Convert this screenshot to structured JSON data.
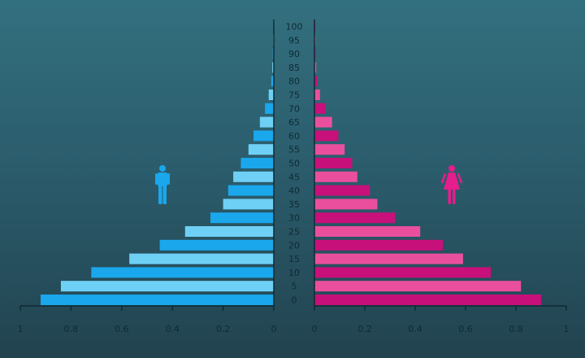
{
  "chart_data": {
    "type": "bar",
    "orientation": "horizontal-pyramid",
    "categories": [
      "0",
      "5",
      "10",
      "15",
      "20",
      "25",
      "30",
      "35",
      "40",
      "45",
      "50",
      "55",
      "60",
      "65",
      "70",
      "75",
      "80",
      "85",
      "90",
      "95",
      "100"
    ],
    "series": [
      {
        "values": [
          0.92,
          0.84,
          0.72,
          0.57,
          0.45,
          0.35,
          0.25,
          0.2,
          0.18,
          0.16,
          0.13,
          0.1,
          0.08,
          0.055,
          0.035,
          0.02,
          0.01,
          0.006,
          0.004,
          0.003,
          0.002
        ]
      },
      {
        "values": [
          0.9,
          0.82,
          0.7,
          0.59,
          0.51,
          0.42,
          0.32,
          0.25,
          0.22,
          0.17,
          0.15,
          0.12,
          0.095,
          0.07,
          0.045,
          0.022,
          0.012,
          0.007,
          0.005,
          0.004,
          0.003
        ]
      }
    ],
    "left_axis": {
      "xlim": [
        0,
        1
      ],
      "ticks": [
        "1",
        "0.8",
        "0.6",
        "0.4",
        "0.2",
        "0"
      ]
    },
    "right_axis": {
      "xlim": [
        0,
        1
      ],
      "ticks": [
        "0",
        "0.2",
        "0.4",
        "0.6",
        "0.8",
        "1"
      ]
    },
    "colors": {
      "left_dark": "#1aa7ec",
      "left_light": "#6fd0f5",
      "right_dark": "#c8107a",
      "right_light": "#ea4f9d",
      "axis": "#0f2a33"
    },
    "icons": {
      "left": "male-person-icon",
      "right": "female-person-icon"
    }
  }
}
